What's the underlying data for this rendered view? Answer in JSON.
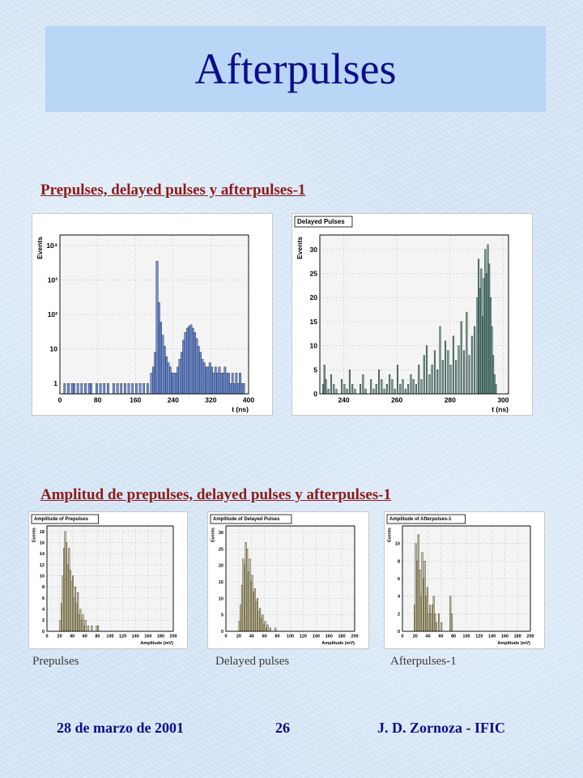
{
  "slide": {
    "title": "Afterpulses"
  },
  "sections": {
    "timing_heading": "Prepulses, delayed pulses y afterpulses-1",
    "amplitude_heading": "Amplitud de prepulses, delayed pulses y afterpulses-1"
  },
  "captions": [
    "Prepulses",
    "Delayed pulses",
    "Afterpulses-1"
  ],
  "footer": {
    "date": "28 de marzo de 2001",
    "page": "26",
    "author": "J. D. Zornoza - IFIC"
  },
  "colors": {
    "title": "#0d0d8a",
    "heading": "#8b1b1b",
    "blue_fill": "#6f8fd6",
    "green_fill": "#6f9c94",
    "tan_fill": "#cdc49a"
  },
  "chart_data": [
    {
      "type": "bar",
      "title": "",
      "xlabel": "t (ns)",
      "ylabel": "Events",
      "log_y": true,
      "xlim": [
        0,
        400
      ],
      "ylim": [
        0.5,
        20000
      ],
      "xticks": [
        "0",
        "80",
        "160",
        "240",
        "320",
        "400"
      ],
      "yticks": [
        "1",
        "10",
        "10²",
        "10³",
        "10⁴"
      ],
      "bin_width": 4,
      "fill": "#6f8fd6",
      "bins": [
        [
          8,
          1
        ],
        [
          16,
          1
        ],
        [
          24,
          1
        ],
        [
          28,
          1
        ],
        [
          36,
          1
        ],
        [
          44,
          1
        ],
        [
          52,
          1
        ],
        [
          60,
          1
        ],
        [
          64,
          1
        ],
        [
          76,
          1
        ],
        [
          84,
          1
        ],
        [
          92,
          1
        ],
        [
          100,
          1
        ],
        [
          112,
          1
        ],
        [
          120,
          1
        ],
        [
          128,
          1
        ],
        [
          136,
          1
        ],
        [
          144,
          1
        ],
        [
          152,
          1
        ],
        [
          160,
          1
        ],
        [
          168,
          1
        ],
        [
          176,
          1
        ],
        [
          184,
          1
        ],
        [
          192,
          2
        ],
        [
          196,
          3
        ],
        [
          200,
          8
        ],
        [
          204,
          3500
        ],
        [
          208,
          220
        ],
        [
          212,
          60
        ],
        [
          216,
          25
        ],
        [
          220,
          12
        ],
        [
          224,
          6
        ],
        [
          228,
          4
        ],
        [
          232,
          3
        ],
        [
          236,
          2
        ],
        [
          240,
          2
        ],
        [
          244,
          2
        ],
        [
          248,
          3
        ],
        [
          252,
          5
        ],
        [
          256,
          8
        ],
        [
          260,
          18
        ],
        [
          264,
          30
        ],
        [
          268,
          40
        ],
        [
          272,
          45
        ],
        [
          276,
          50
        ],
        [
          280,
          40
        ],
        [
          284,
          30
        ],
        [
          288,
          20
        ],
        [
          292,
          12
        ],
        [
          296,
          8
        ],
        [
          300,
          5
        ],
        [
          304,
          4
        ],
        [
          308,
          3
        ],
        [
          312,
          3
        ],
        [
          316,
          4
        ],
        [
          320,
          3
        ],
        [
          324,
          2
        ],
        [
          328,
          3
        ],
        [
          332,
          2
        ],
        [
          336,
          3
        ],
        [
          340,
          2
        ],
        [
          344,
          2
        ],
        [
          348,
          3
        ],
        [
          352,
          2
        ],
        [
          356,
          2
        ],
        [
          360,
          1
        ],
        [
          364,
          2
        ],
        [
          368,
          1
        ],
        [
          372,
          2
        ],
        [
          376,
          1
        ],
        [
          380,
          2
        ],
        [
          384,
          1
        ],
        [
          388,
          1
        ]
      ]
    },
    {
      "type": "bar",
      "title": "Delayed Pulses",
      "xlabel": "t (ns)",
      "ylabel": "Events",
      "xlim": [
        231,
        302
      ],
      "ylim": [
        0,
        33
      ],
      "xticks": [
        240,
        260,
        280,
        300
      ],
      "yticks": [
        0,
        5,
        10,
        15,
        20,
        25,
        30
      ],
      "bin_width": 0.5,
      "fill": "#6f9c94",
      "bins": [
        [
          232,
          2
        ],
        [
          232.5,
          6
        ],
        [
          233,
          3
        ],
        [
          234,
          1
        ],
        [
          235,
          4
        ],
        [
          236,
          2
        ],
        [
          237,
          1
        ],
        [
          239,
          3
        ],
        [
          240,
          2
        ],
        [
          241,
          1
        ],
        [
          242,
          5
        ],
        [
          243,
          2
        ],
        [
          244,
          1
        ],
        [
          246,
          2
        ],
        [
          247,
          4
        ],
        [
          248,
          1
        ],
        [
          250,
          3
        ],
        [
          251,
          1
        ],
        [
          252,
          2
        ],
        [
          253,
          5
        ],
        [
          254,
          3
        ],
        [
          255,
          1
        ],
        [
          256,
          2
        ],
        [
          257,
          4
        ],
        [
          258,
          3
        ],
        [
          259,
          1
        ],
        [
          260,
          6
        ],
        [
          261,
          2
        ],
        [
          262,
          3
        ],
        [
          263,
          1
        ],
        [
          264,
          2
        ],
        [
          265,
          4
        ],
        [
          266,
          3
        ],
        [
          267,
          2
        ],
        [
          268,
          6
        ],
        [
          269,
          3
        ],
        [
          270,
          8
        ],
        [
          271,
          10
        ],
        [
          272,
          4
        ],
        [
          273,
          6
        ],
        [
          274,
          9
        ],
        [
          275,
          5
        ],
        [
          276,
          14
        ],
        [
          277,
          7
        ],
        [
          278,
          11
        ],
        [
          279,
          9
        ],
        [
          280,
          6
        ],
        [
          281,
          12
        ],
        [
          282,
          7
        ],
        [
          283,
          10
        ],
        [
          284,
          15
        ],
        [
          285,
          9
        ],
        [
          286,
          17
        ],
        [
          287,
          8
        ],
        [
          288,
          12
        ],
        [
          289,
          14
        ],
        [
          290,
          20
        ],
        [
          290.5,
          28
        ],
        [
          291,
          22
        ],
        [
          291.5,
          26
        ],
        [
          292,
          16
        ],
        [
          292.5,
          24
        ],
        [
          293,
          30
        ],
        [
          293.5,
          25
        ],
        [
          294,
          31
        ],
        [
          294.5,
          27
        ],
        [
          295,
          20
        ],
        [
          295.5,
          14
        ],
        [
          296,
          8
        ],
        [
          296.5,
          4
        ],
        [
          297,
          2
        ]
      ]
    },
    {
      "type": "bar",
      "title": "Amplitude of Prepulses",
      "xlabel": "Amplitude (mV)",
      "ylabel": "Events",
      "xlim": [
        0,
        200
      ],
      "ylim": [
        0,
        19
      ],
      "xticks": [
        0,
        20,
        40,
        60,
        80,
        100,
        120,
        140,
        160,
        180,
        200
      ],
      "yticks": [
        0,
        2,
        4,
        6,
        8,
        10,
        12,
        14,
        16,
        18
      ],
      "bin_width": 2,
      "fill": "#cdc49a",
      "bins": [
        [
          20,
          2
        ],
        [
          22,
          5
        ],
        [
          24,
          10
        ],
        [
          26,
          15
        ],
        [
          28,
          18
        ],
        [
          30,
          16
        ],
        [
          32,
          12
        ],
        [
          34,
          15
        ],
        [
          36,
          11
        ],
        [
          38,
          9
        ],
        [
          40,
          10
        ],
        [
          42,
          6
        ],
        [
          44,
          8
        ],
        [
          46,
          5
        ],
        [
          48,
          7
        ],
        [
          50,
          3
        ],
        [
          52,
          4
        ],
        [
          54,
          2
        ],
        [
          56,
          3
        ],
        [
          58,
          1
        ],
        [
          60,
          2
        ],
        [
          64,
          1
        ],
        [
          70,
          1
        ],
        [
          78,
          1
        ],
        [
          80,
          1
        ]
      ]
    },
    {
      "type": "bar",
      "title": "Amplitude of Delayed Pulses",
      "xlabel": "Amplitude (mV)",
      "ylabel": "Events",
      "xlim": [
        0,
        200
      ],
      "ylim": [
        0,
        32
      ],
      "xticks": [
        0,
        20,
        40,
        60,
        80,
        100,
        120,
        140,
        160,
        180,
        200
      ],
      "yticks": [
        0,
        5,
        10,
        15,
        20,
        25,
        30
      ],
      "bin_width": 2,
      "fill": "#cdc49a",
      "bins": [
        [
          20,
          3
        ],
        [
          22,
          8
        ],
        [
          24,
          14
        ],
        [
          26,
          22
        ],
        [
          28,
          20
        ],
        [
          30,
          27
        ],
        [
          32,
          25
        ],
        [
          34,
          18
        ],
        [
          36,
          22
        ],
        [
          38,
          15
        ],
        [
          40,
          17
        ],
        [
          42,
          12
        ],
        [
          44,
          13
        ],
        [
          46,
          9
        ],
        [
          48,
          10
        ],
        [
          50,
          6
        ],
        [
          52,
          7
        ],
        [
          54,
          4
        ],
        [
          56,
          5
        ],
        [
          58,
          2
        ],
        [
          60,
          3
        ],
        [
          62,
          1
        ],
        [
          64,
          2
        ],
        [
          68,
          1
        ],
        [
          76,
          1
        ]
      ]
    },
    {
      "type": "bar",
      "title": "Amplitude of Afterpulses-1",
      "xlabel": "Amplitude (mV)",
      "ylabel": "Events",
      "xlim": [
        0,
        200
      ],
      "ylim": [
        0,
        12
      ],
      "xticks": [
        0,
        20,
        40,
        60,
        80,
        100,
        120,
        140,
        160,
        180,
        200
      ],
      "yticks": [
        0,
        2,
        4,
        6,
        8,
        10
      ],
      "bin_width": 2,
      "fill": "#cdc49a",
      "bins": [
        [
          18,
          3
        ],
        [
          20,
          10
        ],
        [
          22,
          8
        ],
        [
          24,
          11
        ],
        [
          26,
          7
        ],
        [
          28,
          4
        ],
        [
          30,
          9
        ],
        [
          32,
          6
        ],
        [
          34,
          8
        ],
        [
          36,
          4
        ],
        [
          38,
          5
        ],
        [
          40,
          2
        ],
        [
          42,
          3
        ],
        [
          44,
          2
        ],
        [
          46,
          3
        ],
        [
          48,
          4
        ],
        [
          50,
          2
        ],
        [
          52,
          1
        ],
        [
          56,
          2
        ],
        [
          60,
          1
        ],
        [
          74,
          4
        ],
        [
          76,
          2
        ]
      ]
    }
  ]
}
